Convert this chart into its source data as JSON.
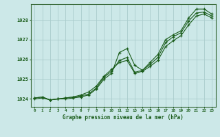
{
  "xlabel": "Graphe pression niveau de la mer (hPa)",
  "bg_color": "#cce8e8",
  "grid_color": "#aacccc",
  "line_color": "#1a5c1a",
  "spine_color": "#336633",
  "xlim": [
    -0.5,
    23.5
  ],
  "ylim": [
    1023.6,
    1028.8
  ],
  "yticks": [
    1024,
    1025,
    1026,
    1027,
    1028
  ],
  "xticks": [
    0,
    1,
    2,
    3,
    4,
    5,
    6,
    7,
    8,
    9,
    10,
    11,
    12,
    13,
    14,
    15,
    16,
    17,
    18,
    19,
    20,
    21,
    22,
    23
  ],
  "line_jagged": [
    1024.05,
    1024.1,
    1023.95,
    1024.0,
    1024.0,
    1024.05,
    1024.1,
    1024.2,
    1024.5,
    1025.0,
    1025.3,
    1026.35,
    1026.55,
    1025.7,
    1025.45,
    1025.85,
    1026.25,
    1027.0,
    1027.25,
    1027.45,
    1028.1,
    1028.55,
    1028.55,
    1028.3
  ],
  "line_mid": [
    1024.05,
    1024.1,
    1023.95,
    1024.0,
    1024.05,
    1024.1,
    1024.15,
    1024.25,
    1024.55,
    1025.1,
    1025.4,
    1025.95,
    1026.1,
    1025.35,
    1025.45,
    1025.75,
    1026.1,
    1026.85,
    1027.15,
    1027.35,
    1027.95,
    1028.35,
    1028.4,
    1028.2
  ],
  "line_smooth": [
    1024.0,
    1024.05,
    1023.95,
    1024.0,
    1024.05,
    1024.1,
    1024.2,
    1024.35,
    1024.65,
    1025.15,
    1025.5,
    1025.85,
    1025.95,
    1025.3,
    1025.4,
    1025.65,
    1025.95,
    1026.65,
    1026.95,
    1027.2,
    1027.75,
    1028.2,
    1028.3,
    1028.1
  ]
}
